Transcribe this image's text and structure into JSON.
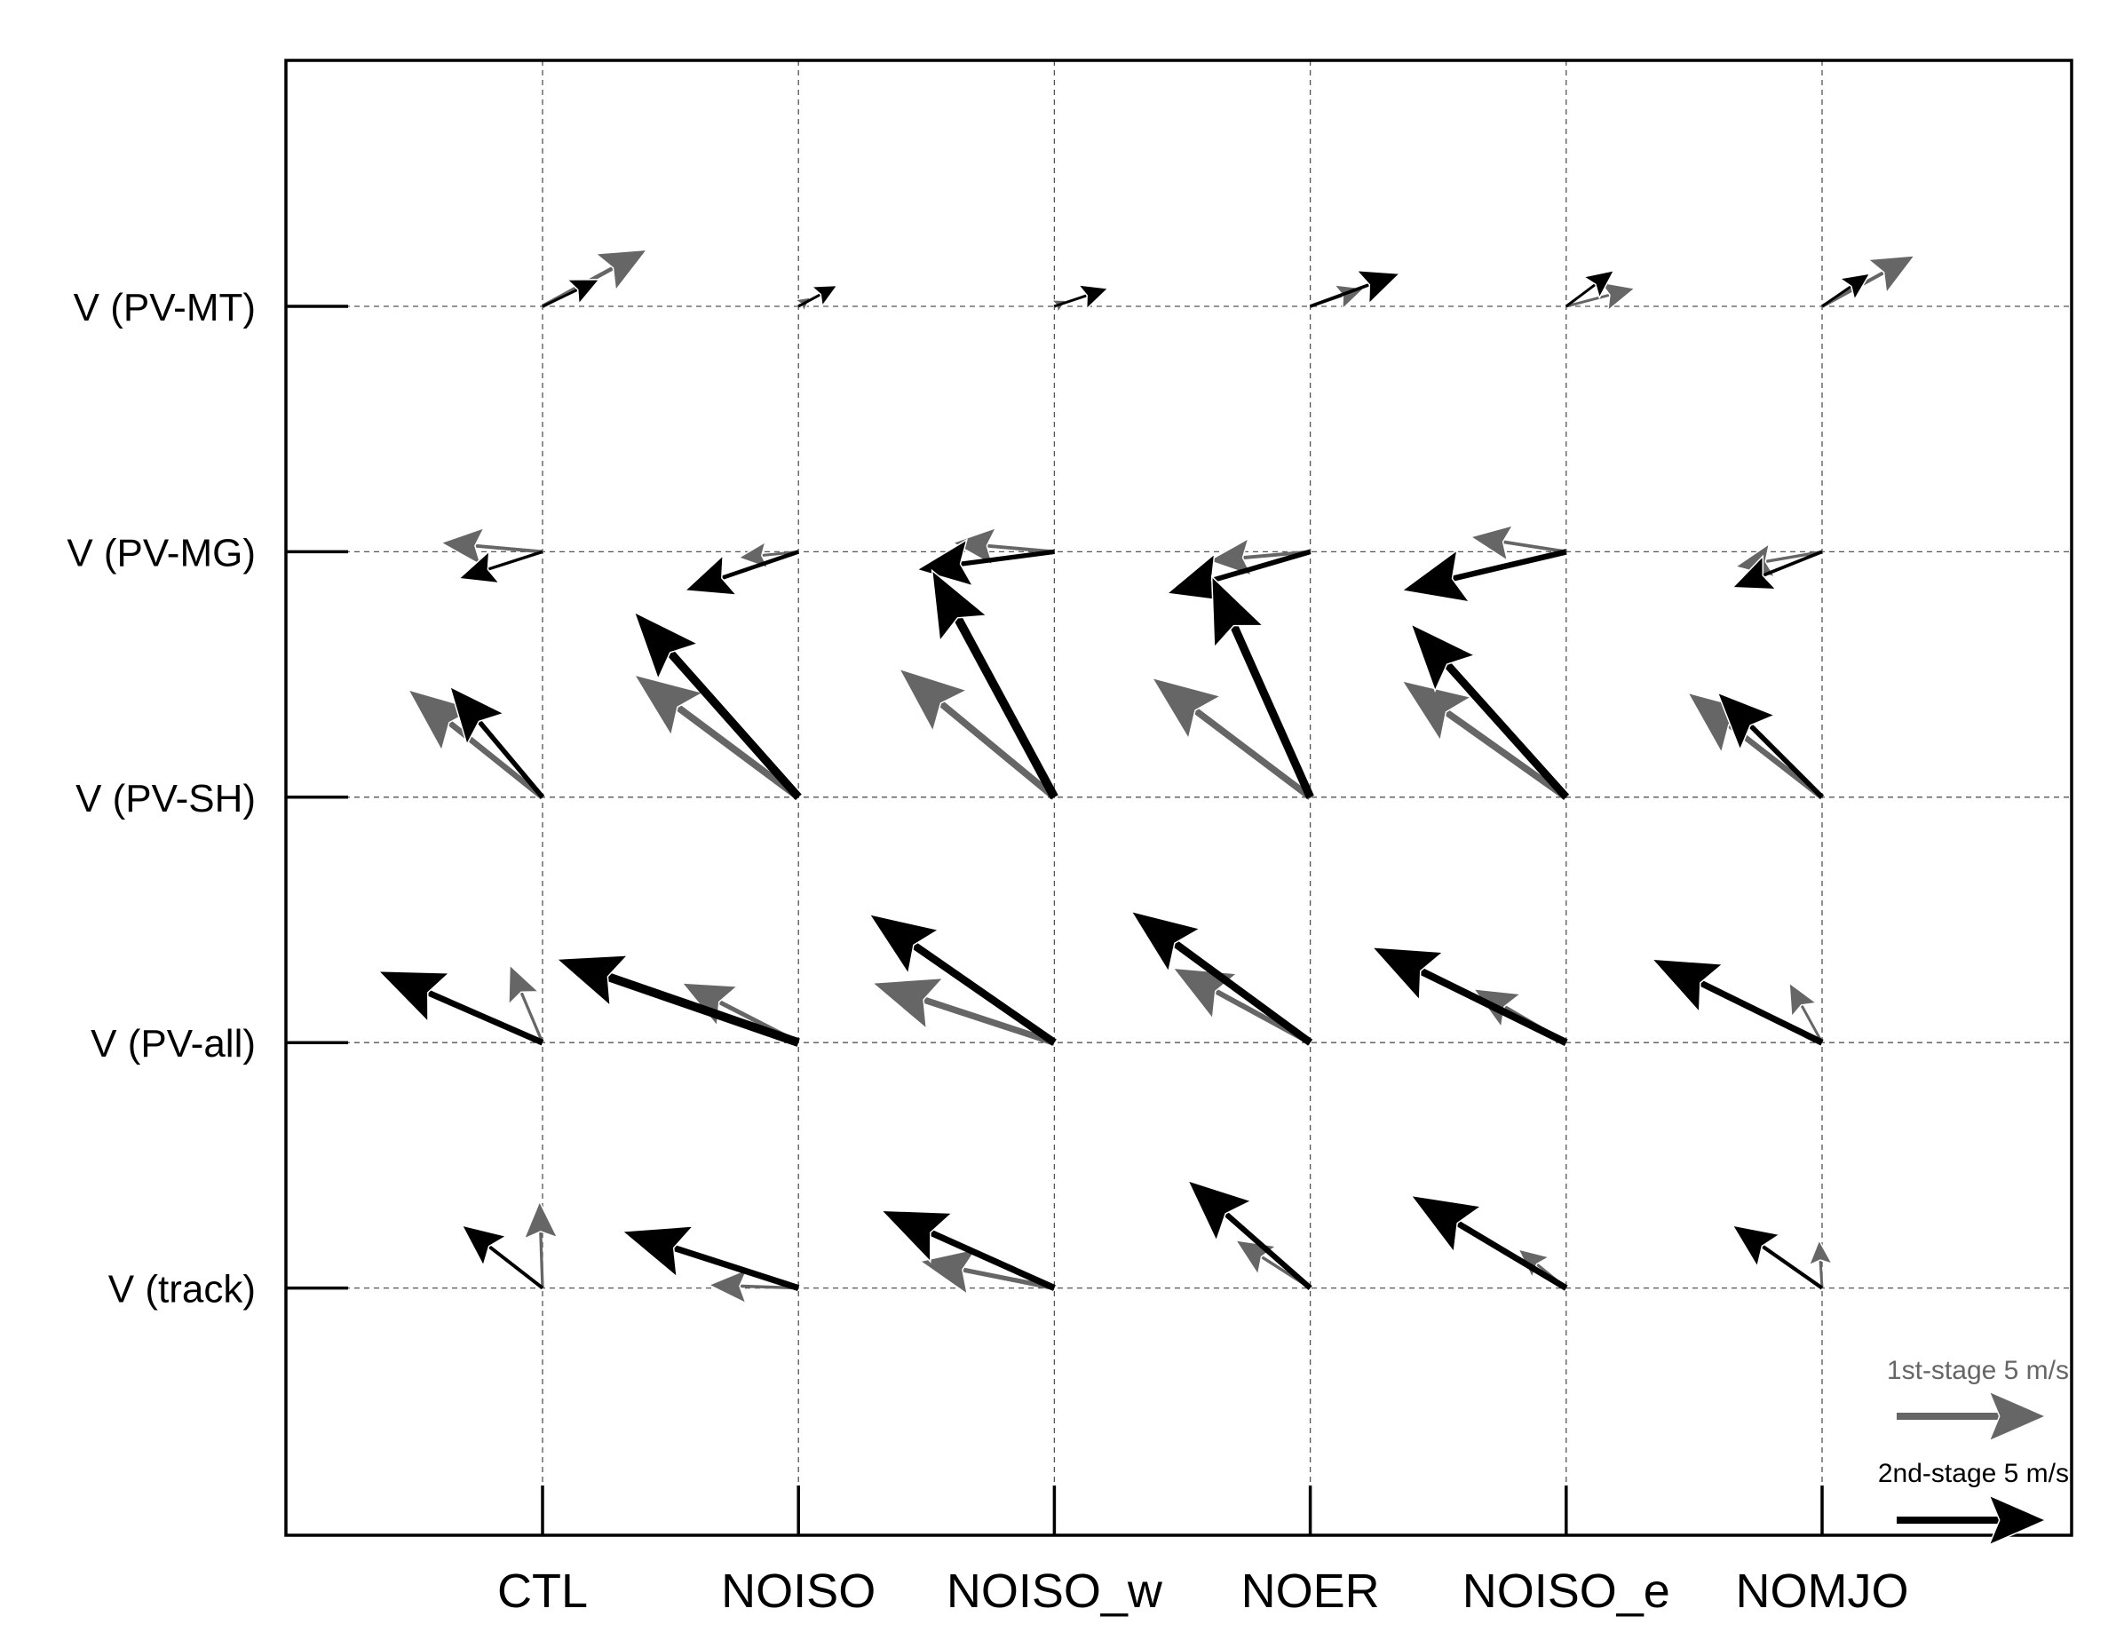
{
  "chart_data": {
    "type": "vector-field",
    "title": "",
    "xlabel": "",
    "ylabel": "",
    "categories": [
      "CTL",
      "NOISO",
      "NOISO_w",
      "NOER",
      "NOISO_e",
      "NOMJO"
    ],
    "rows": [
      "V (PV-MT)",
      "V (PV-MG)",
      "V (PV-SH)",
      "V (PV-all)",
      "V (track)"
    ],
    "units": "m/s",
    "grid": true,
    "legend_position": "bottom-right",
    "colors": {
      "first_stage": "#666666",
      "second_stage": "#000000"
    },
    "legend": [
      {
        "stage": "first",
        "label": "1st-stage 5 m/s",
        "u": 5,
        "v": 0
      },
      {
        "stage": "second",
        "label": "2nd-stage 5 m/s",
        "u": 5,
        "v": 0
      }
    ],
    "series": [
      {
        "stage": "first",
        "vectors": [
          [
            [
              3.5,
              1.9
            ],
            [
              0.4,
              0.3
            ],
            [
              0.4,
              0.2
            ],
            [
              1.8,
              0.6
            ],
            [
              2.3,
              0.6
            ],
            [
              3.1,
              1.7
            ]
          ],
          [
            [
              -3.4,
              0.3
            ],
            [
              -2.0,
              -0.2
            ],
            [
              -3.4,
              0.3
            ],
            [
              -3.4,
              -0.3
            ],
            [
              -3.2,
              0.5
            ],
            [
              -2.9,
              -0.5
            ]
          ],
          [
            [
              -4.5,
              3.6
            ],
            [
              -5.5,
              4.1
            ],
            [
              -5.2,
              4.3
            ],
            [
              -5.3,
              4.0
            ],
            [
              -5.5,
              3.9
            ],
            [
              -4.5,
              3.5
            ]
          ],
          [
            [
              -1.1,
              2.6
            ],
            [
              -3.9,
              2.0
            ],
            [
              -6.1,
              2.0
            ],
            [
              -4.6,
              2.5
            ],
            [
              -3.1,
              1.8
            ],
            [
              -1.1,
              2.0
            ]
          ],
          [
            [
              -0.1,
              2.9
            ],
            [
              -3.0,
              0.1
            ],
            [
              -4.5,
              0.9
            ],
            [
              -2.5,
              1.6
            ],
            [
              -1.6,
              1.3
            ],
            [
              -0.1,
              1.6
            ]
          ]
        ]
      },
      {
        "stage": "second",
        "vectors": [
          [
            [
              1.9,
              0.9
            ],
            [
              1.3,
              0.7
            ],
            [
              1.8,
              0.6
            ],
            [
              3.0,
              1.1
            ],
            [
              1.6,
              1.2
            ],
            [
              1.6,
              1.1
            ]
          ],
          [
            [
              -2.8,
              -0.9
            ],
            [
              -3.8,
              -1.3
            ],
            [
              -4.6,
              -0.6
            ],
            [
              -4.8,
              -1.4
            ],
            [
              -5.5,
              -1.3
            ],
            [
              -3.0,
              -1.2
            ]
          ],
          [
            [
              -3.1,
              3.7
            ],
            [
              -5.5,
              6.2
            ],
            [
              -4.1,
              7.6
            ],
            [
              -3.3,
              7.4
            ],
            [
              -5.2,
              5.8
            ],
            [
              -3.5,
              3.5
            ]
          ],
          [
            [
              -5.5,
              2.4
            ],
            [
              -8.1,
              2.8
            ],
            [
              -6.2,
              4.3
            ],
            [
              -6.0,
              4.4
            ],
            [
              -6.5,
              3.2
            ],
            [
              -5.7,
              2.8
            ]
          ],
          [
            [
              -2.7,
              2.1
            ],
            [
              -5.9,
              1.9
            ],
            [
              -5.8,
              2.6
            ],
            [
              -4.1,
              3.6
            ],
            [
              -5.2,
              3.1
            ],
            [
              -3.0,
              2.1
            ]
          ]
        ]
      }
    ]
  }
}
